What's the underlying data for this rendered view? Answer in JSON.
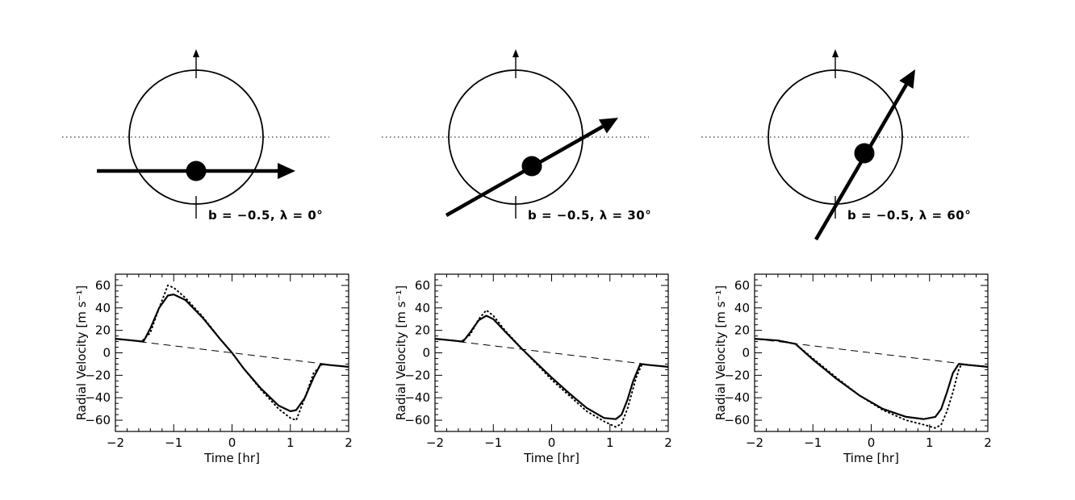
{
  "chart_data": [
    {
      "type": "line",
      "diagram": {
        "impact_parameter": -0.5,
        "lambda_deg": 0,
        "caption": "b = −0.5, λ = 0°"
      },
      "xlabel": "Time [hr]",
      "ylabel": "Radial Velocity [m s⁻¹]",
      "xlim": [
        -2,
        2
      ],
      "ylim": [
        -70,
        70
      ],
      "xticks": [
        "−2",
        "−1",
        "0",
        "1",
        "2"
      ],
      "yticks": [
        "−60",
        "−40",
        "−20",
        "0",
        "20",
        "40",
        "60"
      ],
      "series": [
        {
          "style": "solid",
          "x": [
            -2,
            -1.7,
            -1.52,
            -1.4,
            -1.25,
            -1.1,
            -1.0,
            -0.8,
            -0.5,
            -0.2,
            0,
            0.2,
            0.5,
            0.8,
            1.0,
            1.1,
            1.25,
            1.4,
            1.52,
            1.7,
            2
          ],
          "y": [
            12.5,
            11,
            10,
            22,
            40,
            51,
            52,
            47,
            31,
            12,
            0,
            -14,
            -32,
            -47,
            -52,
            -51,
            -40,
            -22,
            -10,
            -11,
            -12.5
          ]
        },
        {
          "style": "dotted",
          "x": [
            -2,
            -1.7,
            -1.55,
            -1.4,
            -1.25,
            -1.1,
            -1.0,
            -0.8,
            -0.5,
            -0.2,
            0,
            0.2,
            0.5,
            0.8,
            1.0,
            1.1,
            1.25,
            1.4,
            1.55,
            1.7,
            2
          ],
          "y": [
            12.5,
            11,
            10,
            18,
            40,
            60,
            58,
            49,
            32,
            12,
            0,
            -14,
            -33,
            -50,
            -58,
            -60,
            -40,
            -18,
            -10,
            -11,
            -12.5
          ]
        },
        {
          "style": "dashed",
          "x": [
            -2,
            2
          ],
          "y": [
            12.5,
            -12.5
          ]
        }
      ]
    },
    {
      "type": "line",
      "diagram": {
        "impact_parameter": -0.5,
        "lambda_deg": 30,
        "caption": "b = −0.5, λ = 30°"
      },
      "xlabel": "Time [hr]",
      "ylabel": "Radial Velocity [m s⁻¹]",
      "xlim": [
        -2,
        2
      ],
      "ylim": [
        -70,
        70
      ],
      "xticks": [
        "−2",
        "−1",
        "0",
        "1",
        "2"
      ],
      "yticks": [
        "−60",
        "−40",
        "−20",
        "0",
        "20",
        "40",
        "60"
      ],
      "series": [
        {
          "style": "solid",
          "x": [
            -2,
            -1.7,
            -1.52,
            -1.4,
            -1.25,
            -1.12,
            -1.0,
            -0.8,
            -0.5,
            -0.2,
            0,
            0.3,
            0.6,
            0.9,
            1.1,
            1.2,
            1.3,
            1.4,
            1.52,
            1.7,
            2
          ],
          "y": [
            12.5,
            11,
            10,
            18,
            29,
            33,
            30,
            19,
            3,
            -12,
            -22,
            -36,
            -49,
            -58,
            -59,
            -55,
            -42,
            -25,
            -10,
            -11,
            -12.5
          ]
        },
        {
          "style": "dotted",
          "x": [
            -2,
            -1.7,
            -1.55,
            -1.4,
            -1.25,
            -1.12,
            -1.0,
            -0.8,
            -0.5,
            -0.2,
            0,
            0.3,
            0.6,
            0.9,
            1.1,
            1.2,
            1.3,
            1.45,
            1.55,
            1.7,
            2
          ],
          "y": [
            12.5,
            11,
            10,
            16,
            30,
            38,
            33,
            20,
            3,
            -13,
            -24,
            -38,
            -52,
            -61,
            -66,
            -63,
            -50,
            -22,
            -10,
            -11,
            -12.5
          ]
        },
        {
          "style": "dashed",
          "x": [
            -2,
            2
          ],
          "y": [
            12.5,
            -12.5
          ]
        }
      ]
    },
    {
      "type": "line",
      "diagram": {
        "impact_parameter": -0.5,
        "lambda_deg": 60,
        "caption": "b = −0.5, λ = 60°"
      },
      "xlabel": "Time [hr]",
      "ylabel": "Radial Velocity [m s⁻¹]",
      "xlim": [
        -2,
        2
      ],
      "ylim": [
        -70,
        70
      ],
      "xticks": [
        "−2",
        "−1",
        "0",
        "1",
        "2"
      ],
      "yticks": [
        "−60",
        "−40",
        "−20",
        "0",
        "20",
        "40",
        "60"
      ],
      "series": [
        {
          "style": "solid",
          "x": [
            -2,
            -1.6,
            -1.3,
            -1.0,
            -0.6,
            -0.2,
            0.2,
            0.6,
            0.9,
            1.1,
            1.2,
            1.3,
            1.4,
            1.5,
            1.7,
            2
          ],
          "y": [
            12.5,
            11,
            8,
            -6,
            -23,
            -38,
            -50,
            -57,
            -59,
            -57,
            -50,
            -35,
            -18,
            -10,
            -11,
            -12.5
          ]
        },
        {
          "style": "dotted",
          "x": [
            -2,
            -1.6,
            -1.3,
            -1.0,
            -0.6,
            -0.2,
            0.2,
            0.6,
            0.9,
            1.1,
            1.2,
            1.3,
            1.4,
            1.5,
            1.55,
            1.7,
            2
          ],
          "y": [
            12.5,
            11,
            8,
            -5,
            -22,
            -38,
            -51,
            -60,
            -64,
            -67,
            -64,
            -52,
            -35,
            -15,
            -10,
            -11,
            -12.5
          ]
        },
        {
          "style": "dashed",
          "x": [
            -2,
            2
          ],
          "y": [
            12.5,
            -12.5
          ]
        }
      ]
    }
  ]
}
